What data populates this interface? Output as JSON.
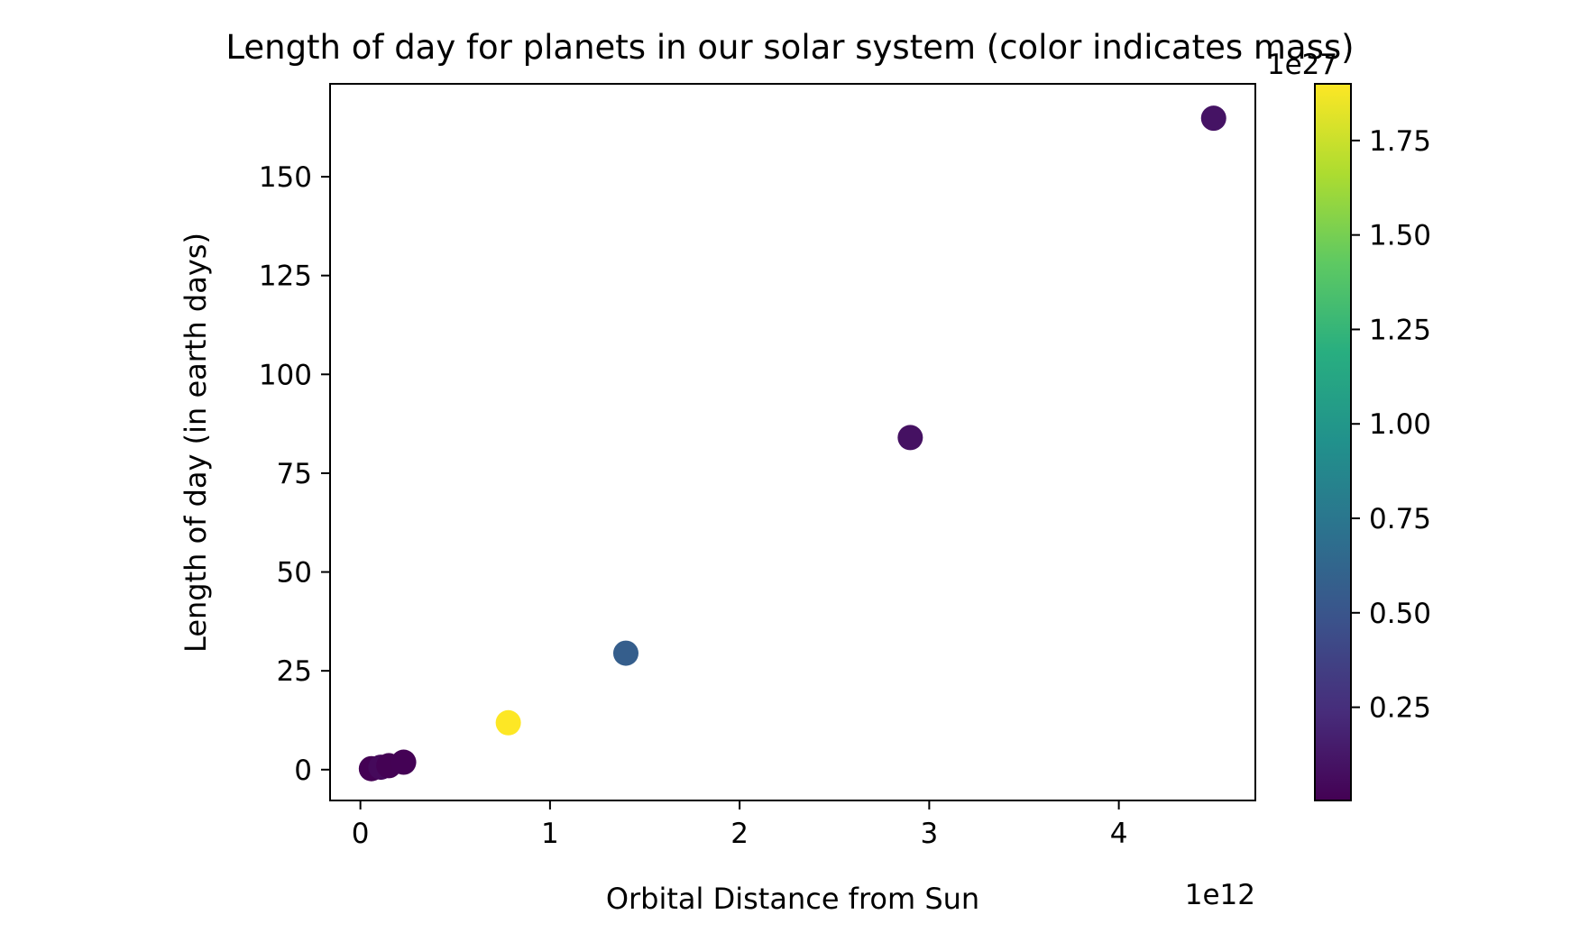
{
  "chart_data": {
    "type": "scatter",
    "title": "Length of day for planets in our solar system (color indicates mass)",
    "xlabel": "Orbital Distance from Sun",
    "ylabel": "Length of day (in earth days)",
    "x_offset_label": "1e12",
    "colorbar_offset_label": "1e27",
    "xlim": [
      -0.16,
      4.72
    ],
    "ylim": [
      -7.8,
      173.5
    ],
    "x_ticks": [
      0,
      1,
      2,
      3,
      4
    ],
    "x_tick_labels": [
      "0",
      "1",
      "2",
      "3",
      "4"
    ],
    "y_ticks": [
      0,
      25,
      50,
      75,
      100,
      125,
      150
    ],
    "y_tick_labels": [
      "0",
      "25",
      "50",
      "75",
      "100",
      "125",
      "150"
    ],
    "colorbar": {
      "colormap": "viridis",
      "range": [
        0.0033,
        1.9
      ],
      "ticks": [
        0.25,
        0.5,
        0.75,
        1.0,
        1.25,
        1.5,
        1.75
      ],
      "tick_labels": [
        "0.25",
        "0.50",
        "0.75",
        "1.00",
        "1.25",
        "1.50",
        "1.75"
      ]
    },
    "points": [
      {
        "x": 0.058,
        "y": 0.24,
        "c": 0.0033
      },
      {
        "x": 0.108,
        "y": 0.62,
        "c": 0.0487
      },
      {
        "x": 0.15,
        "y": 1.0,
        "c": 0.006
      },
      {
        "x": 0.228,
        "y": 1.88,
        "c": 0.0064
      },
      {
        "x": 0.78,
        "y": 11.86,
        "c": 1.9
      },
      {
        "x": 1.4,
        "y": 29.46,
        "c": 0.57
      },
      {
        "x": 2.9,
        "y": 84.01,
        "c": 0.087
      },
      {
        "x": 4.5,
        "y": 164.8,
        "c": 0.102
      }
    ],
    "grid": false
  }
}
